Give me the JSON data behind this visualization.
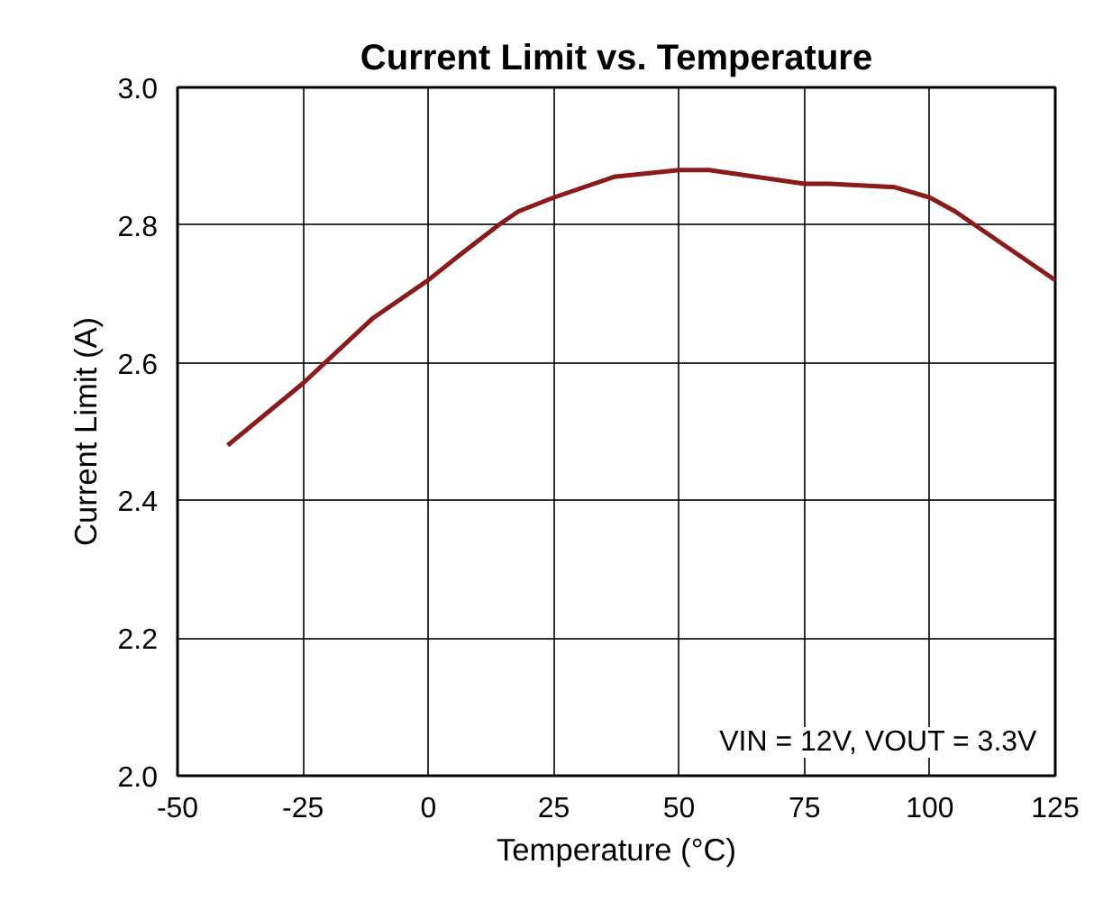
{
  "chart_data": {
    "type": "line",
    "title": "Current Limit vs. Temperature",
    "xlabel": "Temperature (°C)",
    "ylabel": "Current Limit (A)",
    "series": [
      {
        "color": "#8b1a1a",
        "x": [
          -40,
          -25,
          -11,
          0,
          6,
          14,
          18,
          25,
          37,
          50,
          56,
          75,
          80,
          93,
          100,
          105,
          111,
          125
        ],
        "values": [
          2.48,
          2.57,
          2.665,
          2.72,
          2.755,
          2.8,
          2.82,
          2.84,
          2.87,
          2.88,
          2.88,
          2.86,
          2.86,
          2.855,
          2.84,
          2.82,
          2.79,
          2.72
        ]
      }
    ],
    "xlim": [
      -50,
      125
    ],
    "xticks": [
      -50,
      -25,
      0,
      25,
      50,
      75,
      100,
      125
    ],
    "ylim": [
      2.0,
      3.0
    ],
    "yticks": [
      {
        "value": 2.0,
        "label": "2.0"
      },
      {
        "value": 2.2,
        "label": "2.2"
      },
      {
        "value": 2.4,
        "label": "2.4"
      },
      {
        "value": 2.6,
        "label": "2.6"
      },
      {
        "value": 2.8,
        "label": "2.8"
      },
      {
        "value": 3.0,
        "label": "3.0"
      }
    ],
    "grid": true,
    "marker": "none",
    "line_style": "solid",
    "annotations": [
      "VIN = 12V, VOUT = 3.3V"
    ]
  }
}
